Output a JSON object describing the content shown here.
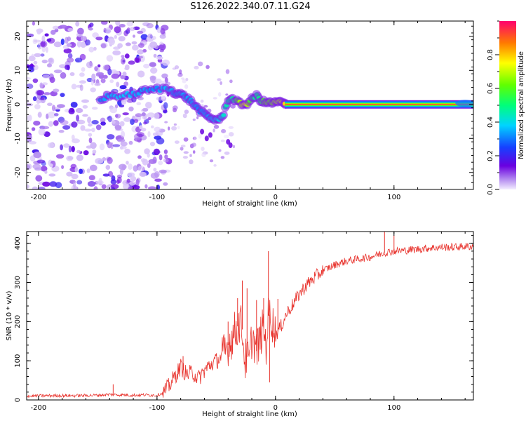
{
  "title": "S126.2022.340.07.11.G24",
  "chart_data": [
    {
      "type": "heatmap",
      "name": "spectrogram",
      "xlabel": "Height of straight line (km)",
      "ylabel": "Frequency (Hz)",
      "xlim": [
        -210,
        167
      ],
      "ylim": [
        -25,
        24.5
      ],
      "xticks": [
        -200,
        -100,
        0,
        100
      ],
      "yticks": [
        -20,
        -10,
        0,
        10,
        20
      ],
      "colorbar": {
        "label": "Normalized spectral amplitude",
        "range": [
          0,
          1
        ],
        "ticks": [
          0.0,
          0.2,
          0.4,
          0.6,
          0.8
        ]
      },
      "noise_region_x": [
        -210,
        -95
      ],
      "ridge": [
        {
          "x": -148,
          "f": 1.5,
          "amp": 0.38
        },
        {
          "x": -140,
          "f": 2.5,
          "amp": 0.42
        },
        {
          "x": -130,
          "f": 2.5,
          "amp": 0.45
        },
        {
          "x": -120,
          "f": 3.0,
          "amp": 0.42
        },
        {
          "x": -110,
          "f": 4.0,
          "amp": 0.4
        },
        {
          "x": -100,
          "f": 4.5,
          "amp": 0.38
        },
        {
          "x": -90,
          "f": 4.5,
          "amp": 0.45
        },
        {
          "x": -85,
          "f": 3.5,
          "amp": 0.38
        },
        {
          "x": -80,
          "f": 3.0,
          "amp": 0.4
        },
        {
          "x": -75,
          "f": 2.0,
          "amp": 0.42
        },
        {
          "x": -70,
          "f": 0.5,
          "amp": 0.4
        },
        {
          "x": -65,
          "f": -1.5,
          "amp": 0.38
        },
        {
          "x": -60,
          "f": -3.0,
          "amp": 0.4
        },
        {
          "x": -55,
          "f": -4.0,
          "amp": 0.42
        },
        {
          "x": -50,
          "f": -4.5,
          "amp": 0.45
        },
        {
          "x": -45,
          "f": -4.0,
          "amp": 0.48
        },
        {
          "x": -40,
          "f": 1.5,
          "amp": 0.55
        },
        {
          "x": -35,
          "f": 1.5,
          "amp": 0.55
        },
        {
          "x": -30,
          "f": 0.2,
          "amp": 0.8
        },
        {
          "x": -25,
          "f": 0.0,
          "amp": 0.88
        },
        {
          "x": -20,
          "f": 1.5,
          "amp": 0.6
        },
        {
          "x": -16,
          "f": 2.5,
          "amp": 0.55
        },
        {
          "x": -12,
          "f": 1.0,
          "amp": 0.62
        },
        {
          "x": -8,
          "f": 0.5,
          "amp": 0.75
        },
        {
          "x": -4,
          "f": 0.5,
          "amp": 0.72
        },
        {
          "x": 0,
          "f": 0.5,
          "amp": 0.8
        },
        {
          "x": 4,
          "f": 0.8,
          "amp": 0.82
        },
        {
          "x": 8,
          "f": 0.0,
          "amp": 0.92
        }
      ],
      "carrier": {
        "x_start": 8,
        "x_end": 167,
        "f": 0.0,
        "amp": 0.95
      }
    },
    {
      "type": "line",
      "name": "snr",
      "xlabel": "Height of straight line (km)",
      "ylabel": "SNR (10 * v/v)",
      "xlim": [
        -210,
        167
      ],
      "ylim": [
        0,
        430
      ],
      "xticks": [
        -200,
        -100,
        0,
        100
      ],
      "yticks": [
        0,
        100,
        200,
        300,
        400
      ],
      "series": [
        {
          "name": "SNR",
          "color": "#e8332d",
          "x": [
            -210,
            -190,
            -170,
            -150,
            -140,
            -130,
            -120,
            -110,
            -100,
            -95,
            -90,
            -85,
            -80,
            -75,
            -70,
            -65,
            -60,
            -55,
            -50,
            -45,
            -42,
            -40,
            -35,
            -30,
            -28,
            -26,
            -24,
            -22,
            -20,
            -18,
            -16,
            -14,
            -12,
            -10,
            -8,
            -6,
            -4,
            -2,
            0,
            5,
            10,
            15,
            20,
            25,
            30,
            40,
            50,
            60,
            70,
            80,
            90,
            100,
            110,
            120,
            130,
            140,
            150,
            160,
            167
          ],
          "y": [
            10,
            11,
            11,
            12,
            14,
            13,
            12,
            13,
            12,
            18,
            35,
            60,
            85,
            65,
            70,
            55,
            75,
            90,
            100,
            110,
            125,
            140,
            170,
            200,
            180,
            100,
            110,
            95,
            160,
            150,
            125,
            145,
            170,
            185,
            140,
            215,
            220,
            190,
            165,
            190,
            225,
            245,
            270,
            290,
            305,
            330,
            345,
            355,
            360,
            365,
            375,
            380,
            382,
            385,
            388,
            390,
            390,
            392,
            392
          ],
          "spikes": [
            {
              "x": -40,
              "y": 200
            },
            {
              "x": -32,
              "y": 260
            },
            {
              "x": -28,
              "y": 305
            },
            {
              "x": -24,
              "y": 285
            },
            {
              "x": -6,
              "y": 380
            },
            {
              "x": -5,
              "y": 45
            },
            {
              "x": -16,
              "y": 255
            },
            {
              "x": -10,
              "y": 260
            },
            {
              "x": 2,
              "y": 258
            },
            {
              "x": 92,
              "y": 430
            },
            {
              "x": 100,
              "y": 420
            },
            {
              "x": -78,
              "y": 112
            },
            {
              "x": -137,
              "y": 40
            }
          ]
        }
      ]
    }
  ]
}
